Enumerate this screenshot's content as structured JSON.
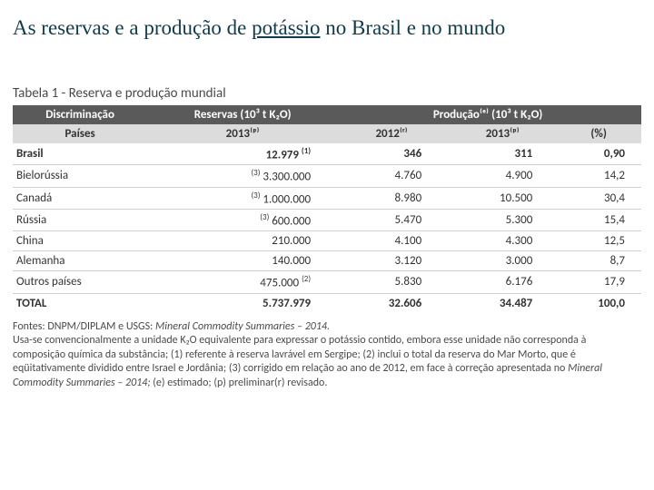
{
  "title_pre": "As reservas e a produção de ",
  "title_under": "potássio",
  "title_post": " no Brasil e no mundo",
  "table_caption": "Tabela 1 - Reserva e produção mundial",
  "headers": {
    "discriminacao": "Discriminação",
    "reservas": "Reservas (10³ t K₂O)",
    "producao": "Produção⁽ᵉ⁾ (10³ t K₂O)",
    "paises": "Países",
    "y2013p": "2013⁽ᵖ⁾",
    "y2012r": "2012⁽ʳ⁾",
    "y2013p2": "2013⁽ᵖ⁾",
    "pct": "(%)"
  },
  "rows": [
    {
      "country": "Brasil",
      "reserve": "12.979",
      "note_r": "(1)",
      "p2012": "346",
      "p2013": "311",
      "pct": "0,90",
      "bold": true
    },
    {
      "country": "Bielorússia",
      "reserve": "3.300.000",
      "note_l": "(3)",
      "p2012": "4.760",
      "p2013": "4.900",
      "pct": "14,2"
    },
    {
      "country": "Canadá",
      "reserve": "1.000.000",
      "note_l": "(3)",
      "p2012": "8.980",
      "p2013": "10.500",
      "pct": "30,4"
    },
    {
      "country": "Rússia",
      "reserve": "600.000",
      "note_l": "(3)",
      "p2012": "5.470",
      "p2013": "5.300",
      "pct": "15,4"
    },
    {
      "country": "China",
      "reserve": "210.000",
      "p2012": "4.100",
      "p2013": "4.300",
      "pct": "12,5"
    },
    {
      "country": "Alemanha",
      "reserve": "140.000",
      "p2012": "3.120",
      "p2013": "3.000",
      "pct": "8,7"
    },
    {
      "country": "Outros países",
      "reserve": "475.000",
      "note_r": "(2)",
      "p2012": "5.830",
      "p2013": "6.176",
      "pct": "17,9"
    },
    {
      "country": "TOTAL",
      "reserve": "5.737.979",
      "p2012": "32.606",
      "p2013": "34.487",
      "pct": "100,0",
      "total": true
    }
  ],
  "footer": {
    "fontes_label": "Fontes: DNPM/DIPLAM e USGS: ",
    "fontes_italic": "Mineral Commodity Summaries – 2014.",
    "note_text_pre": "Usa-se convencionalmente a unidade K₂O equivalente para expressar o potássio contido, embora esse unidade não corresponda à composição química da substância; (1) referente à reserva lavrável em Sergipe; (2) inclui o total da reserva do Mar Morto, que é eqüitativamente dividido entre Israel e Jordânia; (3) corrigido em relação ao ano de 2012, em face à correção apresentada no ",
    "note_italic": "Mineral Commodity Summaries – 2014;",
    "note_text_post": "  (e) estimado;  (p) preliminar(r) revisado.​"
  },
  "style": {
    "title_color": "#0f3b4a",
    "header_bg": "#5a5a5a",
    "subheader_bg": "#dcdcdc",
    "border_color": "#d0d0d0",
    "body_font": "Calibri",
    "title_font": "Times New Roman",
    "title_size_pt": 17,
    "body_size_pt": 10,
    "footer_size_pt": 9
  }
}
